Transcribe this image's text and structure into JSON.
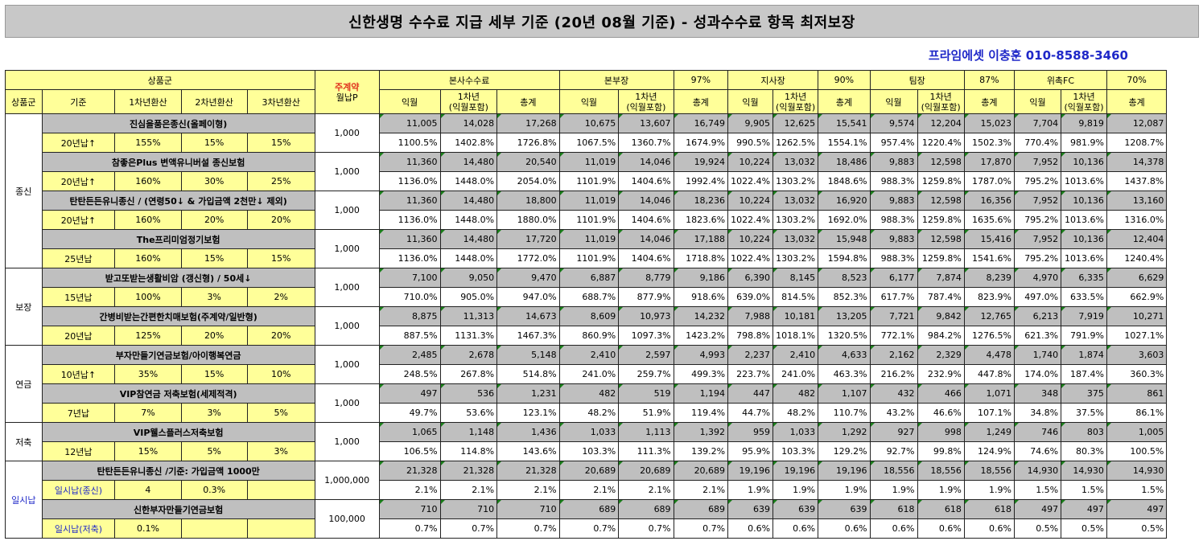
{
  "title": "신한생명 수수료 지급 세부 기준 (20년 08월 기준) - 성과수수료 항목 최저보장",
  "contact": "프라임에셋 이충훈 010-8588-3460",
  "header": {
    "product_group": "상품군",
    "main_contract_1": "주계약",
    "main_contract_2": "월납P",
    "hq_commission": "본사수수료",
    "branch_head": "본부장",
    "branch_head_rate": "97%",
    "office_head": "지사장",
    "office_head_rate": "90%",
    "team_leader": "팀장",
    "team_leader_rate": "87%",
    "consignment_fc": "위촉FC",
    "consignment_fc_rate": "70%",
    "sub_product_group": "상품군",
    "basis": "기준",
    "year1_conv": "1차년환산",
    "year2_conv": "2차년환산",
    "year3_conv": "3차년환산",
    "next_month": "익월",
    "year1_a": "1차년",
    "year1_b": "(익월포함)",
    "total": "총계"
  },
  "groups": [
    {
      "name": "종신",
      "rows": [
        {
          "product": "진심을품은종신(올페이형)",
          "basis": "20년납↑",
          "c1": "155%",
          "c2": "15%",
          "c3": "15%",
          "premium": "1,000",
          "amounts": [
            "11,005",
            "14,028",
            "17,268",
            "10,675",
            "13,607",
            "16,749",
            "9,905",
            "12,625",
            "15,541",
            "9,574",
            "12,204",
            "15,023",
            "7,704",
            "9,819",
            "12,087"
          ],
          "rates": [
            "1100.5%",
            "1402.8%",
            "1726.8%",
            "1067.5%",
            "1360.7%",
            "1674.9%",
            "990.5%",
            "1262.5%",
            "1554.1%",
            "957.4%",
            "1220.4%",
            "1502.3%",
            "770.4%",
            "981.9%",
            "1208.7%"
          ]
        },
        {
          "product": "참좋은Plus 변액유니버설 종신보험",
          "basis": "20년납↑",
          "c1": "160%",
          "c2": "30%",
          "c3": "25%",
          "premium": "1,000",
          "amounts": [
            "11,360",
            "14,480",
            "20,540",
            "11,019",
            "14,046",
            "19,924",
            "10,224",
            "13,032",
            "18,486",
            "9,883",
            "12,598",
            "17,870",
            "7,952",
            "10,136",
            "14,378"
          ],
          "rates": [
            "1136.0%",
            "1448.0%",
            "2054.0%",
            "1101.9%",
            "1404.6%",
            "1992.4%",
            "1022.4%",
            "1303.2%",
            "1848.6%",
            "988.3%",
            "1259.8%",
            "1787.0%",
            "795.2%",
            "1013.6%",
            "1437.8%"
          ]
        },
        {
          "product": "탄탄든든유니종신 / (연령50↓ & 가입금액 2천만↓ 제외)",
          "basis": "20년납↑",
          "c1": "160%",
          "c2": "20%",
          "c3": "20%",
          "premium": "1,000",
          "amounts": [
            "11,360",
            "14,480",
            "18,800",
            "11,019",
            "14,046",
            "18,236",
            "10,224",
            "13,032",
            "16,920",
            "9,883",
            "12,598",
            "16,356",
            "7,952",
            "10,136",
            "13,160"
          ],
          "rates": [
            "1136.0%",
            "1448.0%",
            "1880.0%",
            "1101.9%",
            "1404.6%",
            "1823.6%",
            "1022.4%",
            "1303.2%",
            "1692.0%",
            "988.3%",
            "1259.8%",
            "1635.6%",
            "795.2%",
            "1013.6%",
            "1316.0%"
          ]
        },
        {
          "product": "The프리미엄정기보험",
          "basis": "25년납",
          "c1": "160%",
          "c2": "15%",
          "c3": "15%",
          "premium": "1,000",
          "amounts": [
            "11,360",
            "14,480",
            "17,720",
            "11,019",
            "14,046",
            "17,188",
            "10,224",
            "13,032",
            "15,948",
            "9,883",
            "12,598",
            "15,416",
            "7,952",
            "10,136",
            "12,404"
          ],
          "rates": [
            "1136.0%",
            "1448.0%",
            "1772.0%",
            "1101.9%",
            "1404.6%",
            "1718.8%",
            "1022.4%",
            "1303.2%",
            "1594.8%",
            "988.3%",
            "1259.8%",
            "1541.6%",
            "795.2%",
            "1013.6%",
            "1240.4%"
          ]
        }
      ]
    },
    {
      "name": "보장",
      "rows": [
        {
          "product": "받고또받는생활비암 (갱신형) / 50세↓",
          "basis": "15년납",
          "c1": "100%",
          "c2": "3%",
          "c3": "2%",
          "premium": "1,000",
          "amounts": [
            "7,100",
            "9,050",
            "9,470",
            "6,887",
            "8,779",
            "9,186",
            "6,390",
            "8,145",
            "8,523",
            "6,177",
            "7,874",
            "8,239",
            "4,970",
            "6,335",
            "6,629"
          ],
          "rates": [
            "710.0%",
            "905.0%",
            "947.0%",
            "688.7%",
            "877.9%",
            "918.6%",
            "639.0%",
            "814.5%",
            "852.3%",
            "617.7%",
            "787.4%",
            "823.9%",
            "497.0%",
            "633.5%",
            "662.9%"
          ]
        },
        {
          "product": "간병비받는간편한치매보험(주계약/일반형)",
          "basis": "20년납",
          "c1": "125%",
          "c2": "20%",
          "c3": "20%",
          "premium": "1,000",
          "amounts": [
            "8,875",
            "11,313",
            "14,673",
            "8,609",
            "10,973",
            "14,232",
            "7,988",
            "10,181",
            "13,205",
            "7,721",
            "9,842",
            "12,765",
            "6,213",
            "7,919",
            "10,271"
          ],
          "rates": [
            "887.5%",
            "1131.3%",
            "1467.3%",
            "860.9%",
            "1097.3%",
            "1423.2%",
            "798.8%",
            "1018.1%",
            "1320.5%",
            "772.1%",
            "984.2%",
            "1276.5%",
            "621.3%",
            "791.9%",
            "1027.1%"
          ]
        }
      ]
    },
    {
      "name": "연금",
      "rows": [
        {
          "product": "부자만들기연금보험/아이행복연금",
          "basis": "10년납↑",
          "c1": "35%",
          "c2": "15%",
          "c3": "10%",
          "premium": "1,000",
          "amounts": [
            "2,485",
            "2,678",
            "5,148",
            "2,410",
            "2,597",
            "4,993",
            "2,237",
            "2,410",
            "4,633",
            "2,162",
            "2,329",
            "4,478",
            "1,740",
            "1,874",
            "3,603"
          ],
          "rates": [
            "248.5%",
            "267.8%",
            "514.8%",
            "241.0%",
            "259.7%",
            "499.3%",
            "223.7%",
            "241.0%",
            "463.3%",
            "216.2%",
            "232.9%",
            "447.8%",
            "174.0%",
            "187.4%",
            "360.3%"
          ]
        },
        {
          "product": "VIP참연금 저축보험(세제적격)",
          "basis": "7년납",
          "c1": "7%",
          "c2": "3%",
          "c3": "5%",
          "premium": "1,000",
          "amounts": [
            "497",
            "536",
            "1,231",
            "482",
            "519",
            "1,194",
            "447",
            "482",
            "1,107",
            "432",
            "466",
            "1,071",
            "348",
            "375",
            "861"
          ],
          "rates": [
            "49.7%",
            "53.6%",
            "123.1%",
            "48.2%",
            "51.9%",
            "119.4%",
            "44.7%",
            "48.2%",
            "110.7%",
            "43.2%",
            "46.6%",
            "107.1%",
            "34.8%",
            "37.5%",
            "86.1%"
          ]
        }
      ]
    },
    {
      "name": "저축",
      "rows": [
        {
          "product": "VIP웰스플러스저축보험",
          "basis": "12년납",
          "c1": "15%",
          "c2": "5%",
          "c3": "3%",
          "premium": "1,000",
          "amounts": [
            "1,065",
            "1,148",
            "1,436",
            "1,033",
            "1,113",
            "1,392",
            "959",
            "1,033",
            "1,292",
            "927",
            "998",
            "1,249",
            "746",
            "803",
            "1,005"
          ],
          "rates": [
            "106.5%",
            "114.8%",
            "143.6%",
            "103.3%",
            "111.3%",
            "139.2%",
            "95.9%",
            "103.3%",
            "129.2%",
            "92.7%",
            "99.8%",
            "124.9%",
            "74.6%",
            "80.3%",
            "100.5%"
          ]
        }
      ]
    },
    {
      "name": "일시납",
      "rows": [
        {
          "product": "탄탄든든유니종신 /기준: 가입금액 1000만",
          "basis": "일시납(종신)",
          "c1": "4",
          "c2": "0.3%",
          "c3": "",
          "premium": "1,000,000",
          "amounts": [
            "21,328",
            "21,328",
            "21,328",
            "20,689",
            "20,689",
            "20,689",
            "19,196",
            "19,196",
            "19,196",
            "18,556",
            "18,556",
            "18,556",
            "14,930",
            "14,930",
            "14,930"
          ],
          "rates": [
            "2.1%",
            "2.1%",
            "2.1%",
            "2.1%",
            "2.1%",
            "2.1%",
            "1.9%",
            "1.9%",
            "1.9%",
            "1.9%",
            "1.9%",
            "1.9%",
            "1.5%",
            "1.5%",
            "1.5%"
          ]
        },
        {
          "product": "신한부자만들기연금보험",
          "basis": "일시납(저축)",
          "c1": "0.1%",
          "c2": "",
          "c3": "",
          "premium": "100,000",
          "amounts": [
            "710",
            "710",
            "710",
            "689",
            "689",
            "689",
            "639",
            "639",
            "639",
            "618",
            "618",
            "618",
            "497",
            "497",
            "497"
          ],
          "rates": [
            "0.7%",
            "0.7%",
            "0.7%",
            "0.7%",
            "0.7%",
            "0.7%",
            "0.6%",
            "0.6%",
            "0.6%",
            "0.6%",
            "0.6%",
            "0.6%",
            "0.5%",
            "0.5%",
            "0.5%"
          ]
        }
      ]
    }
  ]
}
